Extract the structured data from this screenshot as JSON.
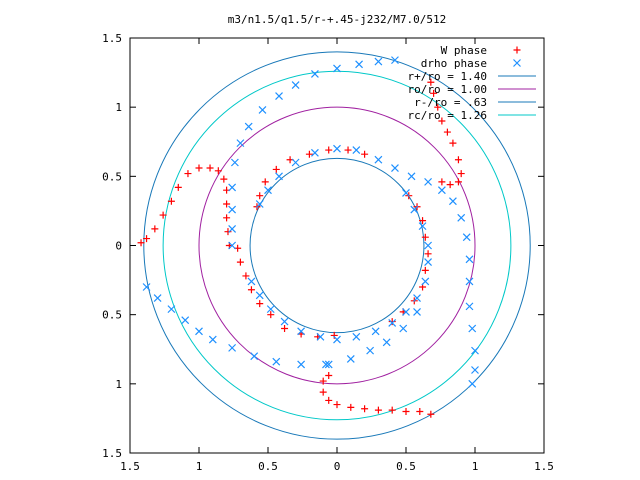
{
  "chart_data": {
    "type": "scatter",
    "title": "m3/n1.5/q1.5/r-+.45-j232/M7.0/512",
    "xlabel": "",
    "ylabel": "",
    "xlim": [
      -1.5,
      1.5
    ],
    "ylim": [
      -1.5,
      1.5
    ],
    "x_ticks": [
      -1.5,
      -1,
      -0.5,
      0,
      0.5,
      1,
      1.5
    ],
    "y_ticks": [
      -1.5,
      -1,
      -0.5,
      0,
      0.5,
      1,
      1.5
    ],
    "x_tick_labels": [
      "1.5",
      "1",
      "0.5",
      "0",
      "0.5",
      "1",
      "1.5"
    ],
    "y_tick_labels": [
      "1.5",
      "1",
      "0.5",
      "0",
      "0.5",
      "1",
      "1.5"
    ],
    "grid": false,
    "legend_position": "top-right",
    "series": [
      {
        "name": "W phase",
        "marker": "plus",
        "color": "#ff0000",
        "points": [
          [
            -1.42,
            0.02
          ],
          [
            -1.38,
            0.05
          ],
          [
            -1.32,
            0.12
          ],
          [
            -1.26,
            0.22
          ],
          [
            -1.2,
            0.32
          ],
          [
            -1.15,
            0.42
          ],
          [
            -1.08,
            0.52
          ],
          [
            -1.0,
            0.56
          ],
          [
            -0.92,
            0.56
          ],
          [
            -0.86,
            0.54
          ],
          [
            -0.82,
            0.48
          ],
          [
            -0.8,
            0.4
          ],
          [
            -0.8,
            0.3
          ],
          [
            -0.8,
            0.2
          ],
          [
            -0.79,
            0.1
          ],
          [
            -0.78,
            0.0
          ],
          [
            0.68,
            1.18
          ],
          [
            0.7,
            1.1
          ],
          [
            0.73,
            1.0
          ],
          [
            0.76,
            0.9
          ],
          [
            0.8,
            0.82
          ],
          [
            0.84,
            0.74
          ],
          [
            0.88,
            0.62
          ],
          [
            0.9,
            0.52
          ],
          [
            0.88,
            0.46
          ],
          [
            0.82,
            0.44
          ],
          [
            0.76,
            0.46
          ],
          [
            0.68,
            -1.22
          ],
          [
            0.6,
            -1.2
          ],
          [
            0.5,
            -1.2
          ],
          [
            0.4,
            -1.19
          ],
          [
            0.3,
            -1.19
          ],
          [
            0.2,
            -1.18
          ],
          [
            0.1,
            -1.17
          ],
          [
            0.0,
            -1.15
          ],
          [
            -0.06,
            -1.12
          ],
          [
            -0.1,
            -1.06
          ],
          [
            -0.1,
            -0.98
          ],
          [
            -0.06,
            -0.94
          ],
          [
            -0.58,
            0.28
          ],
          [
            -0.56,
            0.36
          ],
          [
            -0.52,
            0.46
          ],
          [
            -0.44,
            0.55
          ],
          [
            -0.34,
            0.62
          ],
          [
            -0.2,
            0.66
          ],
          [
            -0.06,
            0.69
          ],
          [
            0.08,
            0.69
          ],
          [
            0.2,
            0.66
          ],
          [
            -0.72,
            -0.02
          ],
          [
            -0.7,
            -0.12
          ],
          [
            -0.66,
            -0.22
          ],
          [
            -0.62,
            -0.32
          ],
          [
            -0.56,
            -0.42
          ],
          [
            -0.48,
            -0.5
          ],
          [
            -0.38,
            -0.6
          ],
          [
            -0.26,
            -0.64
          ],
          [
            -0.14,
            -0.66
          ],
          [
            -0.02,
            -0.65
          ],
          [
            0.52,
            0.36
          ],
          [
            0.58,
            0.28
          ],
          [
            0.62,
            0.18
          ],
          [
            0.64,
            0.06
          ],
          [
            0.66,
            -0.06
          ],
          [
            0.64,
            -0.18
          ],
          [
            0.62,
            -0.3
          ],
          [
            0.56,
            -0.4
          ],
          [
            0.48,
            -0.48
          ],
          [
            0.4,
            -0.55
          ]
        ]
      },
      {
        "name": "drho phase",
        "marker": "cross",
        "color": "#1e90ff",
        "points": [
          [
            -1.38,
            -0.3
          ],
          [
            -1.3,
            -0.38
          ],
          [
            -1.2,
            -0.46
          ],
          [
            -1.1,
            -0.54
          ],
          [
            -1.0,
            -0.62
          ],
          [
            -0.9,
            -0.68
          ],
          [
            -0.76,
            -0.74
          ],
          [
            -0.6,
            -0.8
          ],
          [
            -0.44,
            -0.84
          ],
          [
            -0.26,
            -0.86
          ],
          [
            -0.08,
            -0.86
          ],
          [
            -0.76,
            0.0
          ],
          [
            -0.76,
            0.12
          ],
          [
            -0.76,
            0.26
          ],
          [
            -0.76,
            0.42
          ],
          [
            -0.74,
            0.6
          ],
          [
            -0.7,
            0.74
          ],
          [
            -0.64,
            0.86
          ],
          [
            -0.54,
            0.98
          ],
          [
            -0.42,
            1.08
          ],
          [
            -0.3,
            1.16
          ],
          [
            -0.16,
            1.24
          ],
          [
            0.0,
            1.28
          ],
          [
            0.16,
            1.31
          ],
          [
            0.3,
            1.33
          ],
          [
            0.42,
            1.34
          ],
          [
            0.98,
            -1.0
          ],
          [
            1.0,
            -0.9
          ],
          [
            1.0,
            -0.76
          ],
          [
            0.98,
            -0.6
          ],
          [
            0.96,
            -0.44
          ],
          [
            0.96,
            -0.26
          ],
          [
            0.96,
            -0.1
          ],
          [
            0.94,
            0.06
          ],
          [
            0.9,
            0.2
          ],
          [
            0.84,
            0.32
          ],
          [
            0.76,
            0.4
          ],
          [
            0.66,
            0.46
          ],
          [
            0.54,
            0.5
          ],
          [
            0.42,
            0.56
          ],
          [
            0.3,
            0.62
          ],
          [
            -0.56,
            0.3
          ],
          [
            -0.5,
            0.4
          ],
          [
            -0.42,
            0.5
          ],
          [
            -0.3,
            0.6
          ],
          [
            -0.16,
            0.67
          ],
          [
            0.0,
            0.7
          ],
          [
            0.14,
            0.69
          ],
          [
            -0.62,
            -0.26
          ],
          [
            -0.56,
            -0.36
          ],
          [
            -0.48,
            -0.46
          ],
          [
            -0.38,
            -0.55
          ],
          [
            -0.26,
            -0.62
          ],
          [
            -0.12,
            -0.66
          ],
          [
            0.5,
            0.38
          ],
          [
            0.56,
            0.26
          ],
          [
            0.62,
            0.14
          ],
          [
            0.66,
            0.0
          ],
          [
            0.66,
            -0.12
          ],
          [
            0.64,
            -0.26
          ],
          [
            0.58,
            -0.38
          ],
          [
            0.5,
            -0.48
          ],
          [
            0.4,
            -0.56
          ],
          [
            0.28,
            -0.62
          ],
          [
            0.14,
            -0.66
          ],
          [
            0.0,
            -0.68
          ],
          [
            -0.06,
            -0.86
          ],
          [
            0.1,
            -0.82
          ],
          [
            0.24,
            -0.76
          ],
          [
            0.36,
            -0.7
          ],
          [
            0.48,
            -0.6
          ],
          [
            0.58,
            -0.48
          ]
        ]
      }
    ],
    "circles": [
      {
        "name": "r+/ro = 1.40",
        "radius": 1.4,
        "color": "#1878b8"
      },
      {
        "name": "ro/ro = 1.00",
        "radius": 1.0,
        "color": "#a020a0"
      },
      {
        "name": "r-/ro = .63",
        "radius": 0.63,
        "color": "#1878b8"
      },
      {
        "name": "rc/ro = 1.26",
        "radius": 1.26,
        "color": "#00c8c8"
      }
    ]
  }
}
